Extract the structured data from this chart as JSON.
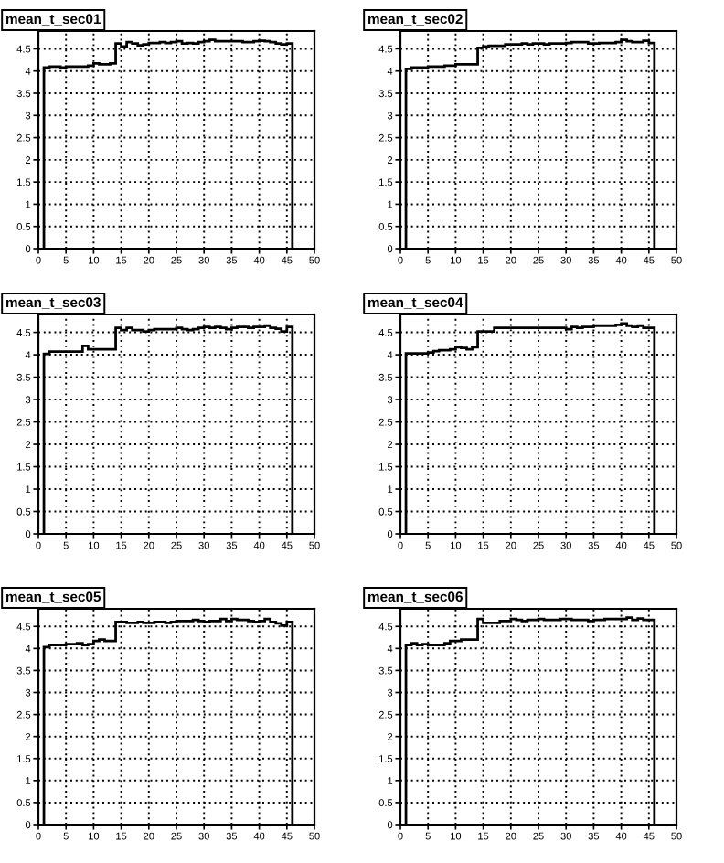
{
  "chart_data": [
    {
      "type": "histogram",
      "title": "mean_t_sec01",
      "color": "#000000",
      "grid": true,
      "xlim": [
        0,
        50
      ],
      "ylim": [
        0,
        4.9
      ],
      "xticks": [
        0,
        5,
        10,
        15,
        20,
        25,
        30,
        35,
        40,
        45,
        50
      ],
      "yticks": [
        0,
        0.5,
        1,
        1.5,
        2,
        2.5,
        3,
        3.5,
        4,
        4.5
      ],
      "bins": [
        1,
        2,
        3,
        4,
        5,
        6,
        7,
        8,
        9,
        10,
        11,
        12,
        13,
        14,
        15,
        16,
        17,
        18,
        19,
        20,
        21,
        22,
        23,
        24,
        25,
        26,
        27,
        28,
        29,
        30,
        31,
        32,
        33,
        34,
        35,
        36,
        37,
        38,
        39,
        40,
        41,
        42,
        43,
        44,
        45,
        46
      ],
      "values": [
        4.08,
        4.1,
        4.1,
        4.08,
        4.1,
        4.1,
        4.1,
        4.1,
        4.12,
        4.17,
        4.15,
        4.15,
        4.17,
        4.62,
        4.55,
        4.65,
        4.62,
        4.58,
        4.6,
        4.63,
        4.63,
        4.65,
        4.63,
        4.65,
        4.67,
        4.62,
        4.63,
        4.62,
        4.65,
        4.67,
        4.7,
        4.67,
        4.67,
        4.67,
        4.67,
        4.67,
        4.65,
        4.65,
        4.67,
        4.68,
        4.67,
        4.65,
        4.62,
        4.6,
        4.62
      ]
    },
    {
      "type": "histogram",
      "title": "mean_t_sec02",
      "color": "#000000",
      "grid": true,
      "xlim": [
        0,
        50
      ],
      "ylim": [
        0,
        4.9
      ],
      "xticks": [
        0,
        5,
        10,
        15,
        20,
        25,
        30,
        35,
        40,
        45,
        50
      ],
      "yticks": [
        0,
        0.5,
        1,
        1.5,
        2,
        2.5,
        3,
        3.5,
        4,
        4.5
      ],
      "bins": [
        1,
        2,
        3,
        4,
        5,
        6,
        7,
        8,
        9,
        10,
        11,
        12,
        13,
        14,
        15,
        16,
        17,
        18,
        19,
        20,
        21,
        22,
        23,
        24,
        25,
        26,
        27,
        28,
        29,
        30,
        31,
        32,
        33,
        34,
        35,
        36,
        37,
        38,
        39,
        40,
        41,
        42,
        43,
        44,
        45,
        46
      ],
      "values": [
        4.05,
        4.08,
        4.08,
        4.08,
        4.1,
        4.1,
        4.1,
        4.12,
        4.12,
        4.15,
        4.15,
        4.15,
        4.15,
        4.52,
        4.55,
        4.57,
        4.57,
        4.57,
        4.6,
        4.6,
        4.6,
        4.62,
        4.6,
        4.62,
        4.62,
        4.6,
        4.62,
        4.62,
        4.62,
        4.63,
        4.65,
        4.65,
        4.65,
        4.62,
        4.62,
        4.63,
        4.63,
        4.63,
        4.65,
        4.7,
        4.67,
        4.65,
        4.65,
        4.68,
        4.63
      ]
    },
    {
      "type": "histogram",
      "title": "mean_t_sec03",
      "color": "#000000",
      "grid": true,
      "xlim": [
        0,
        50
      ],
      "ylim": [
        0,
        4.9
      ],
      "xticks": [
        0,
        5,
        10,
        15,
        20,
        25,
        30,
        35,
        40,
        45,
        50
      ],
      "yticks": [
        0,
        0.5,
        1,
        1.5,
        2,
        2.5,
        3,
        3.5,
        4,
        4.5
      ],
      "bins": [
        1,
        2,
        3,
        4,
        5,
        6,
        7,
        8,
        9,
        10,
        11,
        12,
        13,
        14,
        15,
        16,
        17,
        18,
        19,
        20,
        21,
        22,
        23,
        24,
        25,
        26,
        27,
        28,
        29,
        30,
        31,
        32,
        33,
        34,
        35,
        36,
        37,
        38,
        39,
        40,
        41,
        42,
        43,
        44,
        45,
        46
      ],
      "values": [
        4.02,
        4.07,
        4.07,
        4.07,
        4.07,
        4.07,
        4.07,
        4.2,
        4.12,
        4.12,
        4.12,
        4.12,
        4.12,
        4.6,
        4.55,
        4.6,
        4.55,
        4.55,
        4.52,
        4.55,
        4.57,
        4.57,
        4.57,
        4.57,
        4.6,
        4.57,
        4.55,
        4.57,
        4.6,
        4.62,
        4.6,
        4.62,
        4.6,
        4.57,
        4.6,
        4.62,
        4.62,
        4.6,
        4.62,
        4.62,
        4.65,
        4.6,
        4.58,
        4.52,
        4.62
      ]
    },
    {
      "type": "histogram",
      "title": "mean_t_sec04",
      "color": "#000000",
      "grid": true,
      "xlim": [
        0,
        50
      ],
      "ylim": [
        0,
        4.9
      ],
      "xticks": [
        0,
        5,
        10,
        15,
        20,
        25,
        30,
        35,
        40,
        45,
        50
      ],
      "yticks": [
        0,
        0.5,
        1,
        1.5,
        2,
        2.5,
        3,
        3.5,
        4,
        4.5
      ],
      "bins": [
        1,
        2,
        3,
        4,
        5,
        6,
        7,
        8,
        9,
        10,
        11,
        12,
        13,
        14,
        15,
        16,
        17,
        18,
        19,
        20,
        21,
        22,
        23,
        24,
        25,
        26,
        27,
        28,
        29,
        30,
        31,
        32,
        33,
        34,
        35,
        36,
        37,
        38,
        39,
        40,
        41,
        42,
        43,
        44,
        45,
        46
      ],
      "values": [
        4.03,
        4.03,
        4.03,
        4.03,
        4.05,
        4.08,
        4.1,
        4.1,
        4.12,
        4.17,
        4.15,
        4.12,
        4.17,
        4.52,
        4.52,
        4.52,
        4.6,
        4.6,
        4.6,
        4.6,
        4.6,
        4.6,
        4.6,
        4.6,
        4.6,
        4.6,
        4.6,
        4.6,
        4.6,
        4.57,
        4.62,
        4.6,
        4.62,
        4.62,
        4.65,
        4.65,
        4.65,
        4.65,
        4.67,
        4.7,
        4.65,
        4.62,
        4.65,
        4.6,
        4.6
      ]
    },
    {
      "type": "histogram",
      "title": "mean_t_sec05",
      "color": "#000000",
      "grid": true,
      "xlim": [
        0,
        50
      ],
      "ylim": [
        0,
        4.9
      ],
      "xticks": [
        0,
        5,
        10,
        15,
        20,
        25,
        30,
        35,
        40,
        45,
        50
      ],
      "yticks": [
        0,
        0.5,
        1,
        1.5,
        2,
        2.5,
        3,
        3.5,
        4,
        4.5
      ],
      "bins": [
        1,
        2,
        3,
        4,
        5,
        6,
        7,
        8,
        9,
        10,
        11,
        12,
        13,
        14,
        15,
        16,
        17,
        18,
        19,
        20,
        21,
        22,
        23,
        24,
        25,
        26,
        27,
        28,
        29,
        30,
        31,
        32,
        33,
        34,
        35,
        36,
        37,
        38,
        39,
        40,
        41,
        42,
        43,
        44,
        45,
        46
      ],
      "values": [
        4.03,
        4.08,
        4.08,
        4.08,
        4.1,
        4.1,
        4.12,
        4.08,
        4.1,
        4.17,
        4.2,
        4.17,
        4.17,
        4.6,
        4.6,
        4.58,
        4.58,
        4.6,
        4.58,
        4.58,
        4.6,
        4.6,
        4.58,
        4.6,
        4.62,
        4.62,
        4.62,
        4.65,
        4.62,
        4.6,
        4.62,
        4.62,
        4.67,
        4.62,
        4.67,
        4.65,
        4.65,
        4.62,
        4.6,
        4.62,
        4.67,
        4.6,
        4.57,
        4.52,
        4.6
      ]
    },
    {
      "type": "histogram",
      "title": "mean_t_sec06",
      "color": "#000000",
      "grid": true,
      "xlim": [
        0,
        50
      ],
      "ylim": [
        0,
        4.9
      ],
      "xticks": [
        0,
        5,
        10,
        15,
        20,
        25,
        30,
        35,
        40,
        45,
        50
      ],
      "yticks": [
        0,
        0.5,
        1,
        1.5,
        2,
        2.5,
        3,
        3.5,
        4,
        4.5
      ],
      "bins": [
        1,
        2,
        3,
        4,
        5,
        6,
        7,
        8,
        9,
        10,
        11,
        12,
        13,
        14,
        15,
        16,
        17,
        18,
        19,
        20,
        21,
        22,
        23,
        24,
        25,
        26,
        27,
        28,
        29,
        30,
        31,
        32,
        33,
        34,
        35,
        36,
        37,
        38,
        39,
        40,
        41,
        42,
        43,
        44,
        45,
        46
      ],
      "values": [
        4.08,
        4.12,
        4.08,
        4.1,
        4.08,
        4.08,
        4.08,
        4.12,
        4.17,
        4.17,
        4.2,
        4.2,
        4.2,
        4.67,
        4.58,
        4.58,
        4.58,
        4.62,
        4.62,
        4.67,
        4.65,
        4.62,
        4.65,
        4.65,
        4.67,
        4.65,
        4.65,
        4.65,
        4.67,
        4.67,
        4.65,
        4.65,
        4.65,
        4.62,
        4.65,
        4.65,
        4.67,
        4.67,
        4.67,
        4.67,
        4.7,
        4.65,
        4.68,
        4.65,
        4.65
      ]
    }
  ]
}
